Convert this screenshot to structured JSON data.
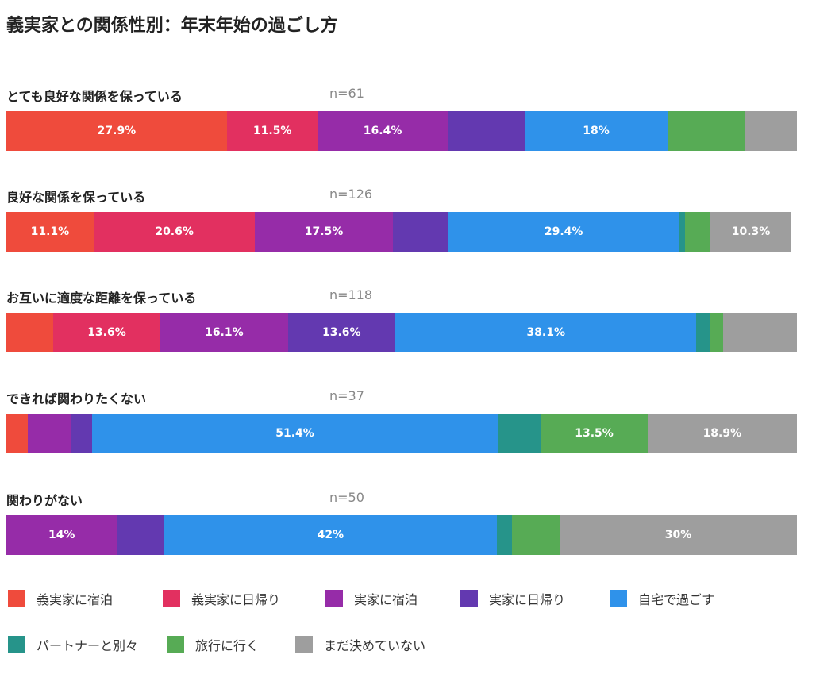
{
  "chart_data": {
    "type": "bar",
    "orientation": "horizontal",
    "stacked": true,
    "title": "義実家との関係性別：年末年始の過ごし方",
    "categories": [
      "とても良好な関係を保っている",
      "良好な関係を保っている",
      "お互いに適度な距離を保っている",
      "できれば関わりたくない",
      "関わりがない"
    ],
    "sample_sizes": [
      "n=61",
      "n=126",
      "n=118",
      "n=37",
      "n=50"
    ],
    "series": [
      {
        "name": "義実家に宿泊",
        "color": "#ef4b3c",
        "values": [
          27.9,
          11.1,
          5.9,
          2.7,
          0
        ]
      },
      {
        "name": "義実家に日帰り",
        "color": "#e23060",
        "values": [
          11.5,
          20.6,
          13.6,
          0,
          0
        ]
      },
      {
        "name": "実家に宿泊",
        "color": "#962ca8",
        "values": [
          16.4,
          17.5,
          16.1,
          5.4,
          14
        ]
      },
      {
        "name": "実家に日帰り",
        "color": "#6339b0",
        "values": [
          9.8,
          7.1,
          13.6,
          2.7,
          6
        ]
      },
      {
        "name": "自宅で過ごす",
        "color": "#2f92ea",
        "values": [
          18,
          29.4,
          38.1,
          51.4,
          42
        ]
      },
      {
        "name": "パートナーと別々",
        "color": "#26948a",
        "values": [
          0,
          0.8,
          1.7,
          5.4,
          2
        ]
      },
      {
        "name": "旅行に行く",
        "color": "#57ab55",
        "values": [
          9.8,
          3.2,
          1.7,
          13.5,
          6
        ]
      },
      {
        "name": "まだ決めていない",
        "color": "#9e9e9e",
        "values": [
          6.6,
          10.3,
          9.3,
          18.9,
          30
        ]
      }
    ],
    "data_labels": [
      [
        "27.9%",
        "11.5%",
        "16.4%",
        "",
        "18%",
        "",
        "",
        ""
      ],
      [
        "11.1%",
        "20.6%",
        "17.5%",
        "",
        "29.4%",
        "",
        "",
        "10.3%"
      ],
      [
        "",
        "13.6%",
        "16.1%",
        "13.6%",
        "38.1%",
        "",
        "",
        ""
      ],
      [
        "",
        "",
        "",
        "",
        "51.4%",
        "",
        "13.5%",
        "18.9%"
      ],
      [
        "",
        "",
        "14%",
        "",
        "42%",
        "",
        "",
        "30%"
      ]
    ],
    "xlim": [
      0,
      100
    ],
    "legend_position": "bottom"
  }
}
